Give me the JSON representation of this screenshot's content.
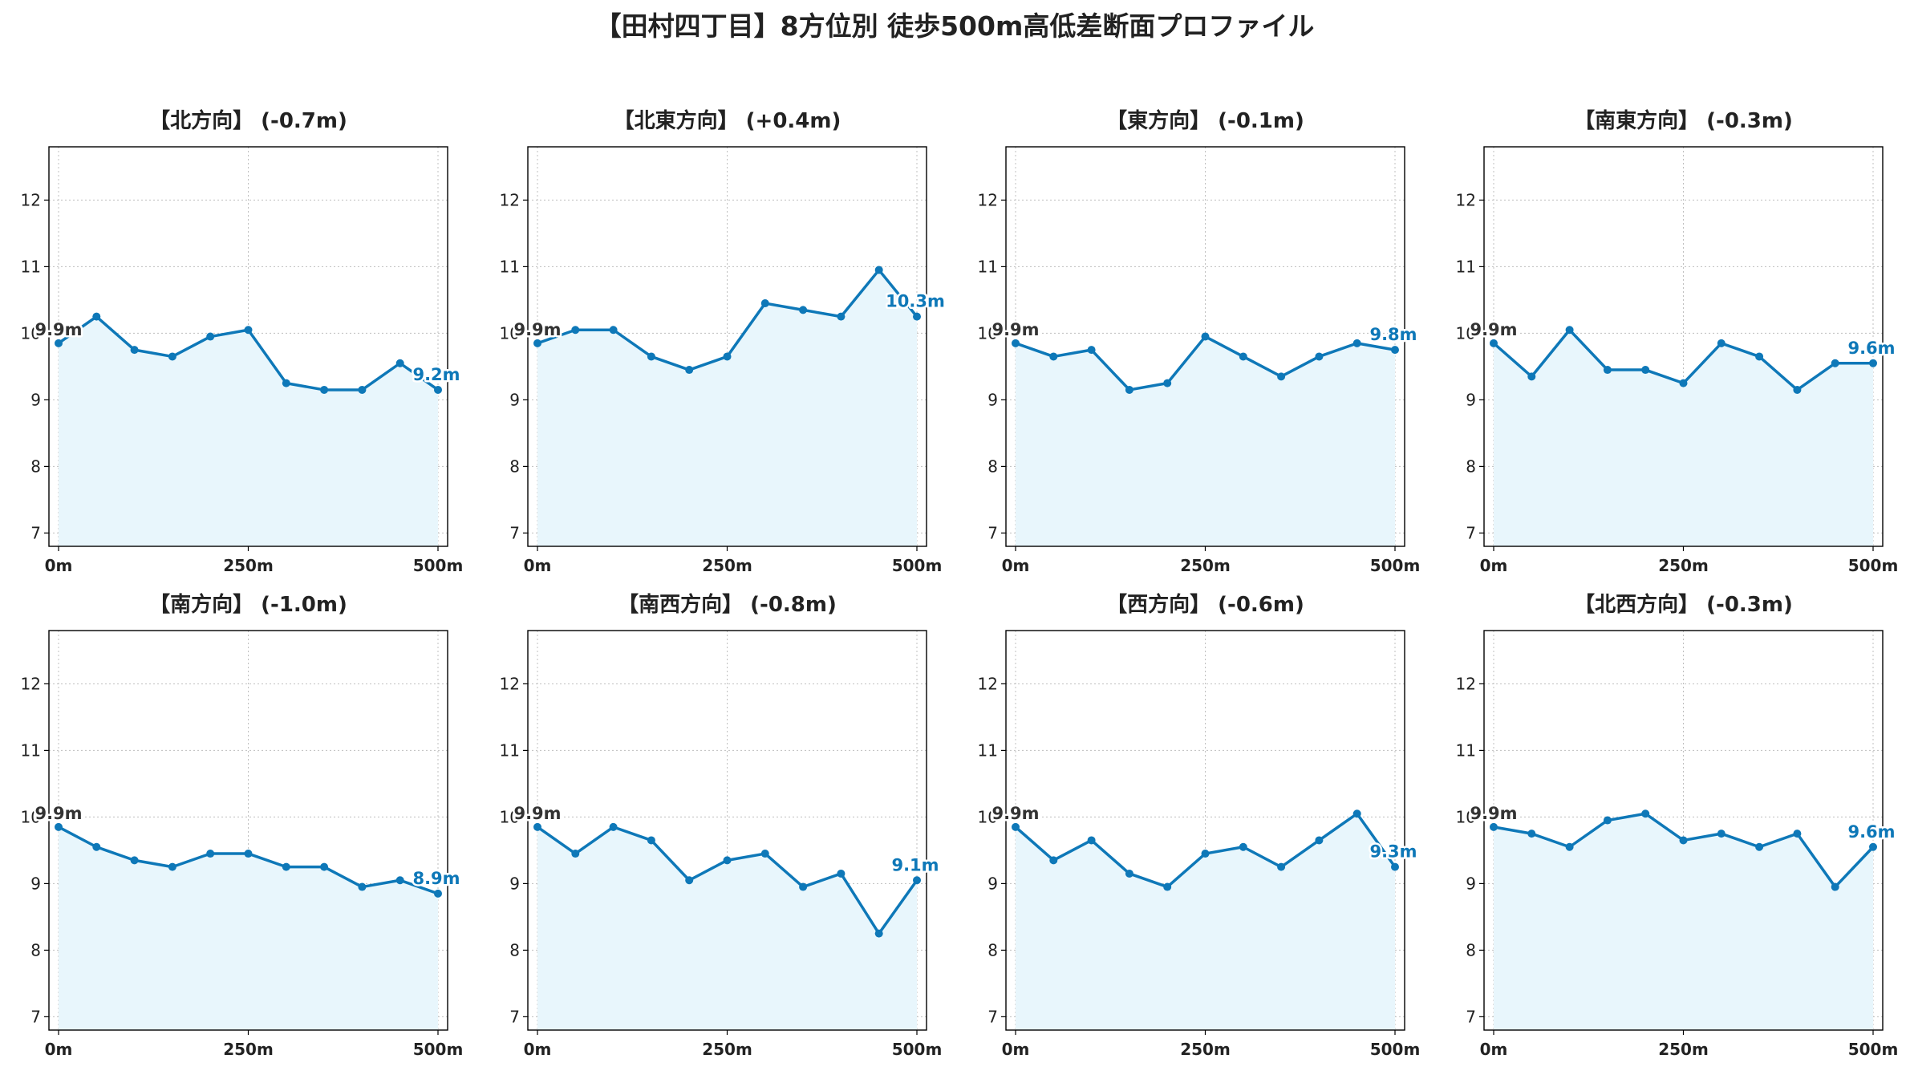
{
  "title": "【田村四丁目】8方位別 徒歩500m高低差断面プロファイル",
  "chart_data": [
    {
      "type": "area",
      "title": "【北方向】 (-0.7m)",
      "x": [
        0,
        50,
        100,
        150,
        200,
        250,
        300,
        350,
        400,
        450,
        500
      ],
      "values": [
        9.85,
        10.25,
        9.75,
        9.65,
        9.95,
        10.05,
        9.25,
        9.15,
        9.15,
        9.55,
        9.15
      ],
      "start_label": "9.9m",
      "end_label": "9.2m",
      "ylim": [
        6.8,
        12.8
      ],
      "yticks": [
        "7",
        "8",
        "9",
        "10",
        "11",
        "12"
      ],
      "xticks": [
        "0m",
        "250m",
        "500m"
      ],
      "grid": true
    },
    {
      "type": "area",
      "title": "【北東方向】 (+0.4m)",
      "x": [
        0,
        50,
        100,
        150,
        200,
        250,
        300,
        350,
        400,
        450,
        500
      ],
      "values": [
        9.85,
        10.05,
        10.05,
        9.65,
        9.45,
        9.65,
        10.45,
        10.35,
        10.25,
        10.95,
        10.25
      ],
      "start_label": "9.9m",
      "end_label": "10.3m",
      "ylim": [
        6.8,
        12.8
      ],
      "yticks": [
        "7",
        "8",
        "9",
        "10",
        "11",
        "12"
      ],
      "xticks": [
        "0m",
        "250m",
        "500m"
      ],
      "grid": true
    },
    {
      "type": "area",
      "title": "【東方向】 (-0.1m)",
      "x": [
        0,
        50,
        100,
        150,
        200,
        250,
        300,
        350,
        400,
        450,
        500
      ],
      "values": [
        9.85,
        9.65,
        9.75,
        9.15,
        9.25,
        9.95,
        9.65,
        9.35,
        9.65,
        9.85,
        9.75
      ],
      "start_label": "9.9m",
      "end_label": "9.8m",
      "ylim": [
        6.8,
        12.8
      ],
      "yticks": [
        "7",
        "8",
        "9",
        "10",
        "11",
        "12"
      ],
      "xticks": [
        "0m",
        "250m",
        "500m"
      ],
      "grid": true
    },
    {
      "type": "area",
      "title": "【南東方向】 (-0.3m)",
      "x": [
        0,
        50,
        100,
        150,
        200,
        250,
        300,
        350,
        400,
        450,
        500
      ],
      "values": [
        9.85,
        9.35,
        10.05,
        9.45,
        9.45,
        9.25,
        9.85,
        9.65,
        9.15,
        9.55,
        9.55
      ],
      "start_label": "9.9m",
      "end_label": "9.6m",
      "ylim": [
        6.8,
        12.8
      ],
      "yticks": [
        "7",
        "8",
        "9",
        "10",
        "11",
        "12"
      ],
      "xticks": [
        "0m",
        "250m",
        "500m"
      ],
      "grid": true
    },
    {
      "type": "area",
      "title": "【南方向】 (-1.0m)",
      "x": [
        0,
        50,
        100,
        150,
        200,
        250,
        300,
        350,
        400,
        450,
        500
      ],
      "values": [
        9.85,
        9.55,
        9.35,
        9.25,
        9.45,
        9.45,
        9.25,
        9.25,
        8.95,
        9.05,
        8.85
      ],
      "start_label": "9.9m",
      "end_label": "8.9m",
      "ylim": [
        6.8,
        12.8
      ],
      "yticks": [
        "7",
        "8",
        "9",
        "10",
        "11",
        "12"
      ],
      "xticks": [
        "0m",
        "250m",
        "500m"
      ],
      "grid": true
    },
    {
      "type": "area",
      "title": "【南西方向】 (-0.8m)",
      "x": [
        0,
        50,
        100,
        150,
        200,
        250,
        300,
        350,
        400,
        450,
        500
      ],
      "values": [
        9.85,
        9.45,
        9.85,
        9.65,
        9.05,
        9.35,
        9.45,
        8.95,
        9.15,
        8.25,
        9.05
      ],
      "start_label": "9.9m",
      "end_label": "9.1m",
      "ylim": [
        6.8,
        12.8
      ],
      "yticks": [
        "7",
        "8",
        "9",
        "10",
        "11",
        "12"
      ],
      "xticks": [
        "0m",
        "250m",
        "500m"
      ],
      "grid": true
    },
    {
      "type": "area",
      "title": "【西方向】 (-0.6m)",
      "x": [
        0,
        50,
        100,
        150,
        200,
        250,
        300,
        350,
        400,
        450,
        500
      ],
      "values": [
        9.85,
        9.35,
        9.65,
        9.15,
        8.95,
        9.45,
        9.55,
        9.25,
        9.65,
        10.05,
        9.25
      ],
      "start_label": "9.9m",
      "end_label": "9.3m",
      "ylim": [
        6.8,
        12.8
      ],
      "yticks": [
        "7",
        "8",
        "9",
        "10",
        "11",
        "12"
      ],
      "xticks": [
        "0m",
        "250m",
        "500m"
      ],
      "grid": true
    },
    {
      "type": "area",
      "title": "【北西方向】 (-0.3m)",
      "x": [
        0,
        50,
        100,
        150,
        200,
        250,
        300,
        350,
        400,
        450,
        500
      ],
      "values": [
        9.85,
        9.75,
        9.55,
        9.95,
        10.05,
        9.65,
        9.75,
        9.55,
        9.75,
        8.95,
        9.55
      ],
      "start_label": "9.9m",
      "end_label": "9.6m",
      "ylim": [
        6.8,
        12.8
      ],
      "yticks": [
        "7",
        "8",
        "9",
        "10",
        "11",
        "12"
      ],
      "xticks": [
        "0m",
        "250m",
        "500m"
      ],
      "grid": true
    }
  ],
  "colors": {
    "line": "#0e78b8",
    "fill": "#e8f6fc",
    "grid": "#bfbfbf",
    "axis": "#000000",
    "end_label": "#0e78b8",
    "start_label": "#333333"
  }
}
